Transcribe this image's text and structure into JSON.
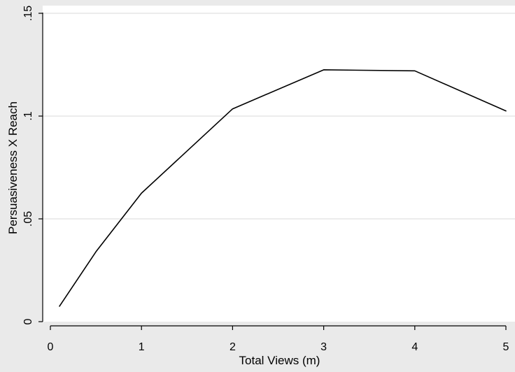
{
  "chart_data": {
    "type": "line",
    "title": "",
    "xlabel": "Total Views (m)",
    "ylabel": "Persuasiveness X Reach",
    "x": [
      0.1,
      0.5,
      1,
      2,
      3,
      4,
      5
    ],
    "series": [
      {
        "values": [
          0.0075,
          0.034,
          0.0625,
          0.1035,
          0.1225,
          0.122,
          0.1025
        ]
      }
    ],
    "xlim": [
      0,
      5
    ],
    "ylim": [
      0,
      0.15
    ],
    "xticks": [
      0,
      1,
      2,
      3,
      4,
      5
    ],
    "xtick_labels": [
      "0",
      "1",
      "2",
      "3",
      "4",
      "5"
    ],
    "yticks": [
      0,
      0.05,
      0.1,
      0.15
    ],
    "ytick_labels": [
      "0",
      ".05",
      ".1",
      ".15"
    ],
    "grid": "horizontal",
    "legend": "none",
    "colors": {
      "background": "#eaeaea",
      "plot_area": "#ffffff",
      "grid": "#e5e5e5",
      "line": "#000000",
      "axis": "#000000"
    }
  }
}
